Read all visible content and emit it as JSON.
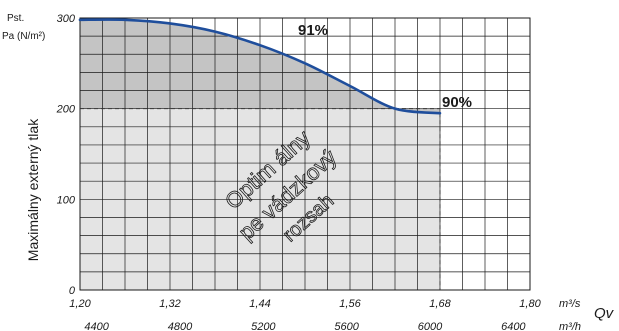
{
  "chart_data": {
    "type": "line",
    "ylabel": "Maximálny externý tlak",
    "ylabel_top_1": "Pst.",
    "ylabel_top_2": "Pa (N/m²)",
    "x_axis_label": "Qv",
    "x_unit_primary": "m³/s",
    "x_unit_secondary": "m³/h",
    "xlim": [
      1.2,
      1.8
    ],
    "ylim": [
      0,
      300
    ],
    "x_ticks": [
      {
        "value": 1.2,
        "label": "1,20"
      },
      {
        "value": 1.32,
        "label": "1,32"
      },
      {
        "value": 1.44,
        "label": "1,44"
      },
      {
        "value": 1.56,
        "label": "1,56"
      },
      {
        "value": 1.68,
        "label": "1,68"
      },
      {
        "value": 1.8,
        "label": "1,80"
      }
    ],
    "x_ticks_secondary": [
      {
        "value": 4400,
        "label": "4400"
      },
      {
        "value": 4800,
        "label": "4800"
      },
      {
        "value": 5200,
        "label": "5200"
      },
      {
        "value": 5600,
        "label": "5600"
      },
      {
        "value": 6000,
        "label": "6000"
      },
      {
        "value": 6400,
        "label": "6400"
      }
    ],
    "y_ticks": [
      {
        "value": 0,
        "label": "0"
      },
      {
        "value": 100,
        "label": "100"
      },
      {
        "value": 200,
        "label": "200"
      },
      {
        "value": 300,
        "label": "300"
      }
    ],
    "grid": true,
    "grid_x_step": 0.03,
    "grid_y_step": 20,
    "series": [
      {
        "x": [
          1.2,
          1.26,
          1.32,
          1.38,
          1.44,
          1.5,
          1.56,
          1.62,
          1.68
        ],
        "y": [
          298,
          298,
          294,
          285,
          270,
          250,
          225,
          200,
          195
        ]
      }
    ],
    "annotations": [
      {
        "text": "91%",
        "x": 1.513,
        "y": 283
      },
      {
        "text": "90%",
        "x": 1.701,
        "y": 205
      }
    ],
    "region_label_lines": [
      "Optim álny",
      "pe vádzkový",
      "rozsah"
    ],
    "colors": {
      "curve": "#1f4e9c",
      "optimal_fill": "#c4c4c4",
      "lower_fill": "#e4e4e4",
      "grid": "#1a1a1a"
    }
  }
}
